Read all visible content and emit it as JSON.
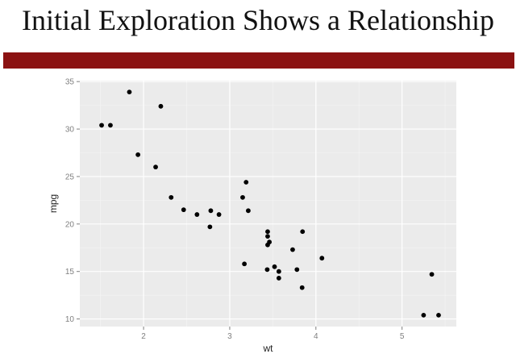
{
  "slide": {
    "title": "Initial Exploration Shows a Relationship",
    "bar_color": "#8b1212"
  },
  "chart_data": {
    "type": "scatter",
    "title": "",
    "xlabel": "wt",
    "ylabel": "mpg",
    "xlim": [
      1.26,
      5.63
    ],
    "ylim": [
      9.2,
      35.1
    ],
    "xticks": [
      2,
      3,
      4,
      5
    ],
    "yticks": [
      10,
      15,
      20,
      25,
      30,
      35
    ],
    "grid": true,
    "panel_color": "#ebebeb",
    "point_color": "#000000",
    "points": [
      {
        "x": 2.62,
        "y": 21.0
      },
      {
        "x": 2.875,
        "y": 21.0
      },
      {
        "x": 2.32,
        "y": 22.8
      },
      {
        "x": 3.215,
        "y": 21.4
      },
      {
        "x": 3.44,
        "y": 18.7
      },
      {
        "x": 3.46,
        "y": 18.1
      },
      {
        "x": 3.57,
        "y": 14.3
      },
      {
        "x": 3.19,
        "y": 24.4
      },
      {
        "x": 3.15,
        "y": 22.8
      },
      {
        "x": 3.44,
        "y": 19.2
      },
      {
        "x": 3.44,
        "y": 17.8
      },
      {
        "x": 4.07,
        "y": 16.4
      },
      {
        "x": 3.73,
        "y": 17.3
      },
      {
        "x": 3.78,
        "y": 15.2
      },
      {
        "x": 5.25,
        "y": 10.4
      },
      {
        "x": 5.424,
        "y": 10.4
      },
      {
        "x": 5.345,
        "y": 14.7
      },
      {
        "x": 2.2,
        "y": 32.4
      },
      {
        "x": 1.615,
        "y": 30.4
      },
      {
        "x": 1.835,
        "y": 33.9
      },
      {
        "x": 2.465,
        "y": 21.5
      },
      {
        "x": 3.52,
        "y": 15.5
      },
      {
        "x": 3.435,
        "y": 15.2
      },
      {
        "x": 3.84,
        "y": 13.3
      },
      {
        "x": 3.845,
        "y": 19.2
      },
      {
        "x": 1.935,
        "y": 27.3
      },
      {
        "x": 2.14,
        "y": 26.0
      },
      {
        "x": 1.513,
        "y": 30.4
      },
      {
        "x": 3.17,
        "y": 15.8
      },
      {
        "x": 2.77,
        "y": 19.7
      },
      {
        "x": 3.57,
        "y": 15.0
      },
      {
        "x": 2.78,
        "y": 21.4
      }
    ]
  }
}
